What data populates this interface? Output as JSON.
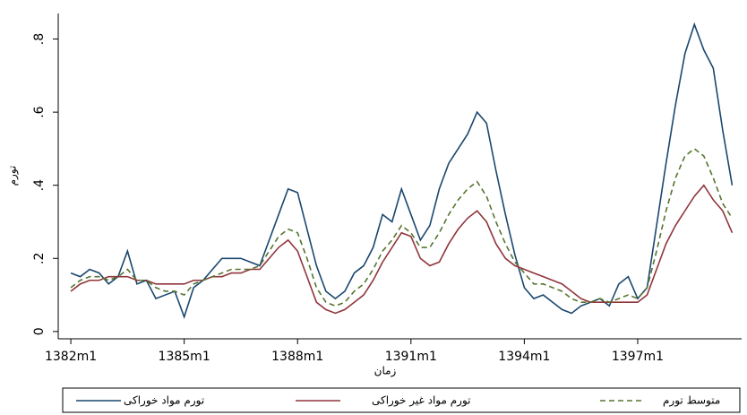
{
  "chart_data": {
    "type": "line",
    "x_label": "زمان",
    "y_label": "تورم",
    "x": [
      "1382m1",
      "1382m4",
      "1382m7",
      "1382m10",
      "1383m1",
      "1383m4",
      "1383m7",
      "1383m10",
      "1384m1",
      "1384m4",
      "1384m7",
      "1384m10",
      "1385m1",
      "1385m4",
      "1385m7",
      "1385m10",
      "1386m1",
      "1386m4",
      "1386m7",
      "1386m10",
      "1387m1",
      "1387m4",
      "1387m7",
      "1387m10",
      "1388m1",
      "1388m4",
      "1388m7",
      "1388m10",
      "1389m1",
      "1389m4",
      "1389m7",
      "1389m10",
      "1390m1",
      "1390m4",
      "1390m7",
      "1390m10",
      "1391m1",
      "1391m4",
      "1391m7",
      "1391m10",
      "1392m1",
      "1392m4",
      "1392m7",
      "1392m10",
      "1393m1",
      "1393m4",
      "1393m7",
      "1393m10",
      "1394m1",
      "1394m4",
      "1394m7",
      "1394m10",
      "1395m1",
      "1395m4",
      "1395m7",
      "1395m10",
      "1396m1",
      "1396m4",
      "1396m7",
      "1396m10",
      "1397m1",
      "1397m4",
      "1397m7",
      "1397m10",
      "1398m1",
      "1398m4",
      "1398m7",
      "1398m10",
      "1399m1",
      "1399m4",
      "1399m7"
    ],
    "series": [
      {
        "name": "تورم مواد خوراکی",
        "color": "#1a476f",
        "line_style": "solid",
        "values": [
          0.16,
          0.15,
          0.17,
          0.16,
          0.13,
          0.15,
          0.22,
          0.13,
          0.14,
          0.09,
          0.1,
          0.11,
          0.04,
          0.12,
          0.14,
          0.17,
          0.2,
          0.2,
          0.2,
          0.19,
          0.18,
          0.25,
          0.32,
          0.39,
          0.38,
          0.28,
          0.18,
          0.11,
          0.09,
          0.11,
          0.16,
          0.18,
          0.23,
          0.32,
          0.3,
          0.39,
          0.32,
          0.25,
          0.29,
          0.39,
          0.46,
          0.5,
          0.54,
          0.6,
          0.57,
          0.44,
          0.32,
          0.21,
          0.12,
          0.09,
          0.1,
          0.08,
          0.06,
          0.05,
          0.07,
          0.08,
          0.09,
          0.07,
          0.13,
          0.15,
          0.09,
          0.12,
          0.29,
          0.46,
          0.62,
          0.76,
          0.84,
          0.77,
          0.72,
          0.55,
          0.4
        ]
      },
      {
        "name": "تورم مواد غیر خوراکی",
        "color": "#90353b",
        "line_style": "solid",
        "values": [
          0.11,
          0.13,
          0.14,
          0.14,
          0.15,
          0.15,
          0.15,
          0.14,
          0.14,
          0.13,
          0.13,
          0.13,
          0.13,
          0.14,
          0.14,
          0.15,
          0.15,
          0.16,
          0.16,
          0.17,
          0.17,
          0.2,
          0.23,
          0.25,
          0.22,
          0.15,
          0.08,
          0.06,
          0.05,
          0.06,
          0.08,
          0.1,
          0.14,
          0.19,
          0.23,
          0.27,
          0.26,
          0.2,
          0.18,
          0.19,
          0.24,
          0.28,
          0.31,
          0.33,
          0.3,
          0.24,
          0.2,
          0.18,
          0.17,
          0.16,
          0.15,
          0.14,
          0.13,
          0.11,
          0.09,
          0.08,
          0.08,
          0.08,
          0.08,
          0.08,
          0.08,
          0.1,
          0.17,
          0.24,
          0.29,
          0.33,
          0.37,
          0.4,
          0.36,
          0.33,
          0.27
        ]
      },
      {
        "name": "متوسط تورم",
        "color": "#55752f",
        "line_style": "dashed",
        "values": [
          0.12,
          0.14,
          0.15,
          0.15,
          0.14,
          0.15,
          0.17,
          0.14,
          0.14,
          0.12,
          0.11,
          0.11,
          0.1,
          0.13,
          0.14,
          0.15,
          0.16,
          0.17,
          0.17,
          0.17,
          0.18,
          0.22,
          0.26,
          0.28,
          0.27,
          0.2,
          0.12,
          0.08,
          0.07,
          0.08,
          0.11,
          0.13,
          0.17,
          0.22,
          0.25,
          0.29,
          0.27,
          0.23,
          0.23,
          0.27,
          0.32,
          0.36,
          0.39,
          0.41,
          0.37,
          0.3,
          0.24,
          0.19,
          0.16,
          0.13,
          0.13,
          0.12,
          0.11,
          0.09,
          0.08,
          0.08,
          0.09,
          0.08,
          0.09,
          0.1,
          0.09,
          0.12,
          0.22,
          0.33,
          0.42,
          0.48,
          0.5,
          0.48,
          0.42,
          0.35,
          0.31
        ]
      }
    ],
    "xlim": [
      "1381m9",
      "1399m10"
    ],
    "xticks": [
      "1382m1",
      "1385m1",
      "1388m1",
      "1391m1",
      "1394m1",
      "1397m1"
    ],
    "ylim": [
      -0.02,
      0.87
    ],
    "yticks": [
      0,
      {
        "value": 0.2,
        "label": ".2"
      },
      {
        "value": 0.4,
        "label": ".4"
      },
      {
        "value": 0.6,
        "label": ".6"
      },
      {
        "value": 0.8,
        "label": ".8"
      }
    ],
    "grid": false
  }
}
